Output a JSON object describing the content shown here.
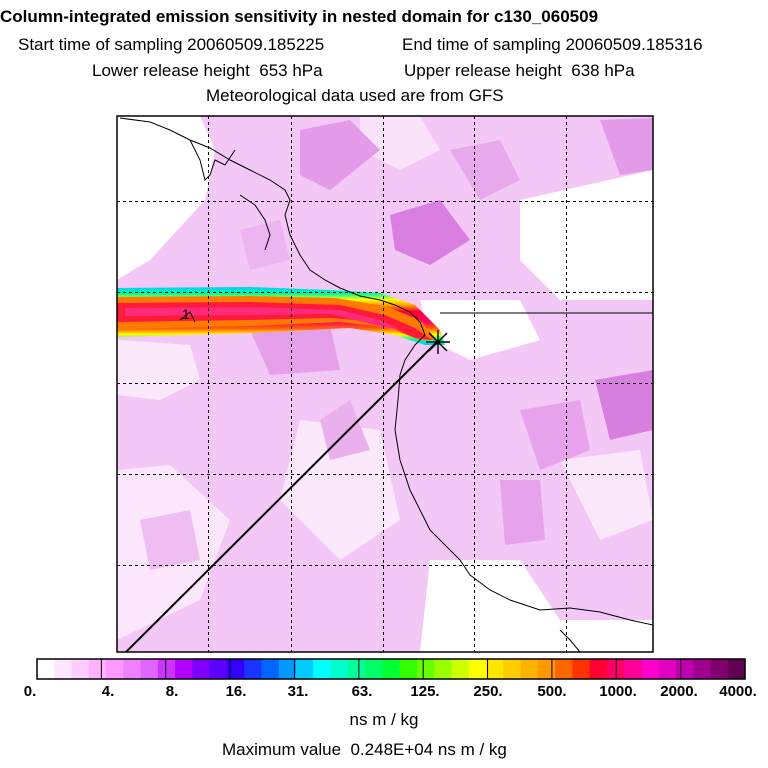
{
  "titles": {
    "main": "Column-integrated emission sensitivity in nested domain for c130_060509",
    "start": "Start time of sampling 20060509.185225",
    "end": "End time of sampling 20060509.185316",
    "lower": "Lower release height  653 hPa",
    "upper": "Upper release height  638 hPa",
    "met": "Meteorological data used are from GFS"
  },
  "colorbar": {
    "labels": [
      "0.",
      "4.",
      "8.",
      "16.",
      "31.",
      "63.",
      "125.",
      "250.",
      "500.",
      "1000.",
      "2000.",
      "4000."
    ],
    "colors": [
      "#ffffff",
      "#ffe6ff",
      "#ffccff",
      "#ffb3ff",
      "#ff99ff",
      "#f080ff",
      "#e066ff",
      "#cc33ff",
      "#b300ff",
      "#8000ff",
      "#5c00ff",
      "#3300ff",
      "#1a33ff",
      "#0066ff",
      "#0099ff",
      "#00ccff",
      "#00ffff",
      "#00ffcc",
      "#00ff99",
      "#00ff66",
      "#00ff33",
      "#33ff00",
      "#66ff00",
      "#99ff00",
      "#ccff00",
      "#ffff00",
      "#ffe600",
      "#ffcc00",
      "#ffb300",
      "#ff9900",
      "#ff6600",
      "#ff3300",
      "#ff0033",
      "#ff0066",
      "#ff0099",
      "#ff00cc",
      "#e000c0",
      "#c000b0",
      "#a00090",
      "#800070",
      "#600050"
    ],
    "units": "ns m / kg",
    "max": "Maximum value  0.248E+04 ns m / kg"
  },
  "map": {
    "release_marker": "1"
  }
}
